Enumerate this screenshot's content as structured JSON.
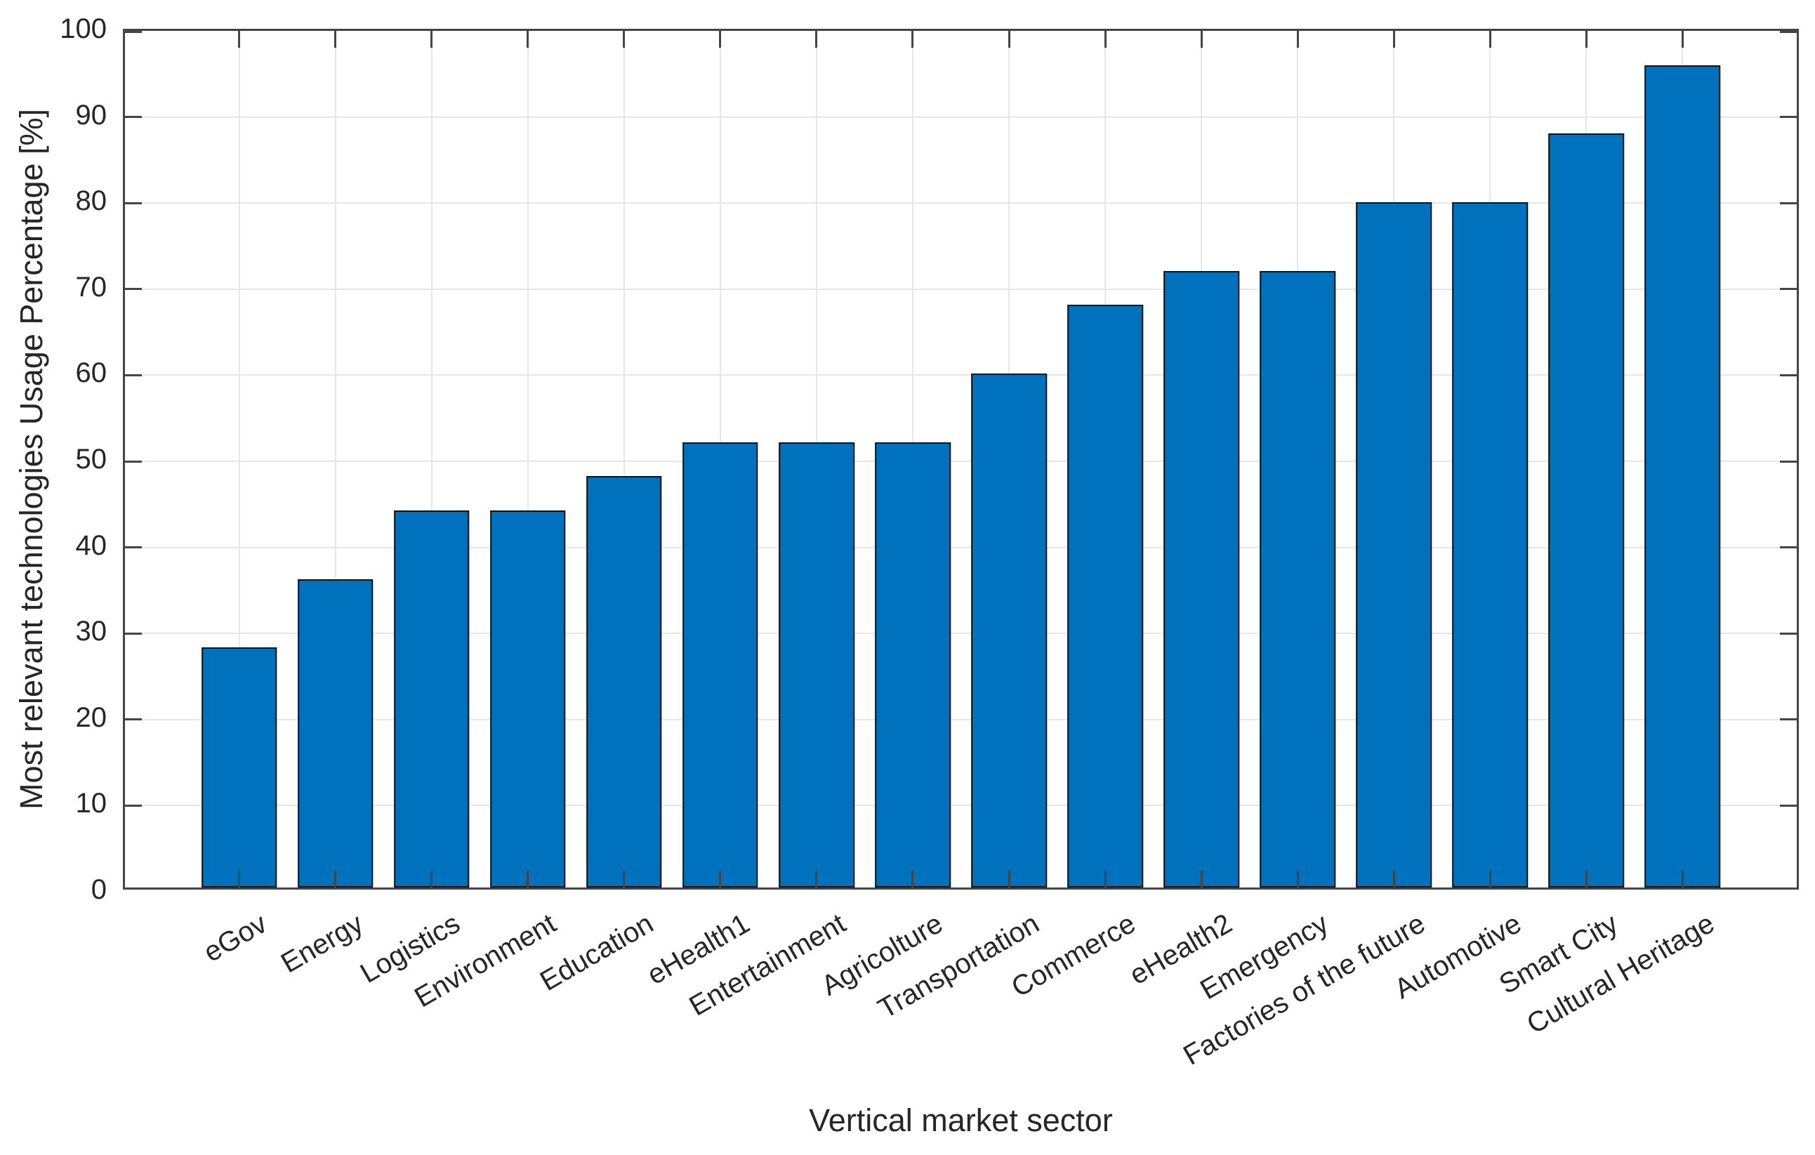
{
  "chart_data": {
    "type": "bar",
    "title": "",
    "xlabel": "Vertical market sector",
    "ylabel": "Most relevant technologies Usage Percentage [%]",
    "categories": [
      "eGov",
      "Energy",
      "Logistics",
      "Environment",
      "Education",
      "eHealth1",
      "Entertainment",
      "Agricolture",
      "Transportation",
      "Commerce",
      "eHealth2",
      "Emergency",
      "Factories of the future",
      "Automotive",
      "Smart City",
      "Cultural Heritage"
    ],
    "values": [
      28,
      36,
      44,
      44,
      48,
      52,
      52,
      52,
      60,
      68,
      72,
      72,
      80,
      80,
      88,
      96
    ],
    "ylim": [
      0,
      100
    ],
    "yticks": [
      0,
      10,
      20,
      30,
      40,
      50,
      60,
      70,
      80,
      90,
      100
    ],
    "grid": "on",
    "legend": "none",
    "bar_color": "#0072BD",
    "bar_edge_color": "#141414",
    "axis_color": "#454545",
    "grid_color": "#e6e6e6",
    "text_color": "#262626",
    "xtick_rotation_deg": 30
  }
}
